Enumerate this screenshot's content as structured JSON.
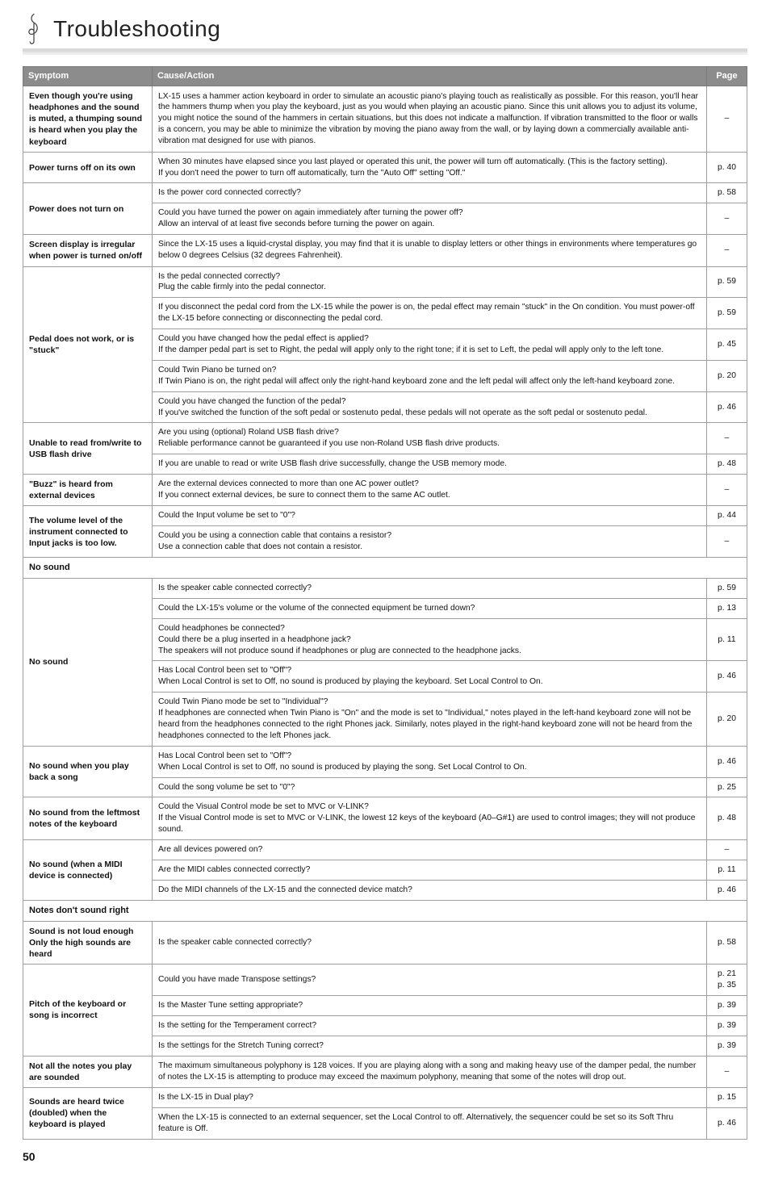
{
  "page_title": "Troubleshooting",
  "page_number": "50",
  "columns": {
    "symptom": "Symptom",
    "cause": "Cause/Action",
    "page": "Page"
  },
  "rows": [
    {
      "sym": "Even though you're using headphones and the sound is muted, a thumping sound is heard when you play the keyboard",
      "cells": [
        {
          "txt": "LX-15 uses a hammer action keyboard in order to simulate an acoustic piano's playing touch as realistically as possible. For this reason, you'll hear the hammers thump when you play the keyboard, just as you would when playing an acoustic piano. Since this unit allows you to adjust its volume, you might notice the sound of the hammers in certain situations, but this does not indicate a malfunction. If vibration transmitted to the floor or walls is a concern, you may be able to minimize the vibration by moving the piano away from the wall, or by laying down a commercially available anti-vibration mat designed for use with pianos.",
          "pg": "–"
        }
      ]
    },
    {
      "sym": "Power turns off on its own",
      "cells": [
        {
          "txt": "When 30 minutes have elapsed since you last played or operated this unit, the power will turn off automatically. (This is the factory setting).\nIf you don't need the power to turn off automatically, turn the \"Auto Off\" setting \"Off.\"",
          "pg": "p. 40"
        }
      ]
    },
    {
      "sym": "Power does not turn on",
      "cells": [
        {
          "txt": "Is the power cord connected correctly?",
          "pg": "p. 58"
        },
        {
          "txt": "Could you have turned the power on again immediately after turning the power off?\nAllow an interval of at least five seconds before turning the power on again.",
          "pg": "–"
        }
      ]
    },
    {
      "sym": "Screen display is irregular when power is turned on/off",
      "cells": [
        {
          "txt": "Since the LX-15 uses a liquid-crystal display, you may find that it is unable to display letters or other things in environments where temperatures go below 0 degrees Celsius (32 degrees Fahrenheit).",
          "pg": "–"
        }
      ]
    },
    {
      "sym": "Pedal does not work, or is \"stuck\"",
      "cells": [
        {
          "txt": "Is the pedal connected correctly?\nPlug the cable firmly into the pedal connector.",
          "pg": "p. 59"
        },
        {
          "txt": "If you disconnect the pedal cord from the LX-15 while the power is on, the pedal effect may remain \"stuck\" in the  On condition. You must power-off the LX-15 before connecting or disconnecting the pedal cord.",
          "pg": "p. 59"
        },
        {
          "txt": "Could you have changed how the pedal effect is applied?\nIf the damper pedal part is set to Right, the pedal will apply only to the right tone; if it is set to Left, the pedal will apply only to the left tone.",
          "pg": "p. 45"
        },
        {
          "txt": "Could Twin Piano be turned on?\nIf Twin Piano is on, the right pedal will affect only the right-hand keyboard zone and the left pedal will affect only the left-hand keyboard zone.",
          "pg": "p. 20"
        },
        {
          "txt": "Could you have changed the function of the pedal?\nIf you've switched the function of the soft pedal or sostenuto pedal, these pedals will not operate as the soft pedal or sostenuto pedal.",
          "pg": "p. 46"
        }
      ]
    },
    {
      "sym": "Unable to read from/write to USB flash drive",
      "cells": [
        {
          "txt": "Are you using (optional) Roland USB flash drive?\nReliable performance cannot be guaranteed if you use non-Roland USB flash drive products.",
          "pg": "–"
        },
        {
          "txt": "If you are unable to read or write USB flash drive successfully, change the USB memory mode.",
          "pg": "p. 48"
        }
      ]
    },
    {
      "sym": "\"Buzz\" is heard from external devices",
      "cells": [
        {
          "txt": "Are the external devices connected to more than one AC power outlet?\nIf you connect external devices, be sure to connect them to the same AC outlet.",
          "pg": "–"
        }
      ]
    },
    {
      "sym": "The volume level of the instrument connected to Input jacks is too low.",
      "cells": [
        {
          "txt": "Could the Input volume be set to \"0\"?",
          "pg": "p. 44"
        },
        {
          "txt": "Could you be using a connection cable that contains a resistor?\nUse a connection cable that does not contain a resistor.",
          "pg": "–"
        }
      ]
    },
    {
      "section": "No sound"
    },
    {
      "sym": "No sound",
      "cells": [
        {
          "txt": "Is the speaker cable connected correctly?",
          "pg": "p. 59"
        },
        {
          "txt": "Could the LX-15's volume or the volume of the connected equipment be turned down?",
          "pg": "p. 13"
        },
        {
          "txt": "Could headphones be connected?\nCould there be a plug inserted in a headphone jack?\nThe speakers will not produce sound if headphones or plug are connected to the headphone jacks.",
          "pg": "p. 11"
        },
        {
          "txt": "Has Local Control been set to \"Off\"?\nWhen Local Control is set to Off, no sound is produced by playing the keyboard. Set Local Control to On.",
          "pg": "p. 46"
        },
        {
          "txt": "Could Twin Piano mode be set to \"Individual\"?\nIf headphones are connected when Twin Piano is \"On\" and the mode is set to \"Individual,\" notes played in the left-hand keyboard zone will not be heard from the headphones connected to the right Phones jack. Similarly, notes played in the right-hand keyboard zone will not be heard from the headphones connected to the left Phones jack.",
          "pg": "p. 20"
        }
      ]
    },
    {
      "sym": "No sound when you play back a song",
      "cells": [
        {
          "txt": "Has Local Control been set to \"Off\"?\nWhen Local Control is set to Off, no sound is produced by playing the song. Set Local Control to On.",
          "pg": "p. 46"
        },
        {
          "txt": "Could the song volume be set to \"0\"?",
          "pg": "p. 25"
        }
      ]
    },
    {
      "sym": "No sound from the leftmost notes of the keyboard",
      "cells": [
        {
          "txt": "Could the Visual Control mode be set to MVC or V-LINK?\nIf the Visual Control mode is set to MVC or V-LINK, the lowest 12 keys of the keyboard (A0–G#1) are used to control images; they will not produce sound.",
          "pg": "p. 48"
        }
      ]
    },
    {
      "sym": "No sound (when a MIDI device is connected)",
      "cells": [
        {
          "txt": "Are all devices powered on?",
          "pg": "–"
        },
        {
          "txt": "Are the MIDI cables connected correctly?",
          "pg": "p. 11"
        },
        {
          "txt": "Do the MIDI channels of the LX-15 and the connected device match?",
          "pg": "p. 46"
        }
      ]
    },
    {
      "section": "Notes don't sound right"
    },
    {
      "sym": "Sound is not loud enough\nOnly the high sounds are heard",
      "cells": [
        {
          "txt": "Is the speaker cable connected correctly?",
          "pg": "p. 58"
        }
      ]
    },
    {
      "sym": "Pitch of the keyboard or song is incorrect",
      "cells": [
        {
          "txt": "Could you have made Transpose settings?",
          "pg": "p. 21\np. 35"
        },
        {
          "txt": "Is the Master Tune setting appropriate?",
          "pg": "p. 39"
        },
        {
          "txt": "Is the setting for the Temperament correct?",
          "pg": "p. 39"
        },
        {
          "txt": "Is the settings for the Stretch Tuning correct?",
          "pg": "p. 39"
        }
      ]
    },
    {
      "sym": "Not all the notes you play are sounded",
      "cells": [
        {
          "txt": "The maximum simultaneous polyphony is 128 voices. If you are playing along with a song and making heavy use of the damper pedal, the number of notes the LX-15 is attempting to produce may exceed the maximum polyphony, meaning that some of the notes will drop out.",
          "pg": "–"
        }
      ]
    },
    {
      "sym": "Sounds are heard twice (doubled) when the keyboard is played",
      "cells": [
        {
          "txt": "Is the LX-15 in Dual play?",
          "pg": "p. 15"
        },
        {
          "txt": "When the LX-15 is connected to an external sequencer, set the Local Control to off. Alternatively, the sequencer could be set so its Soft Thru feature is Off.",
          "pg": "p. 46"
        }
      ]
    }
  ]
}
